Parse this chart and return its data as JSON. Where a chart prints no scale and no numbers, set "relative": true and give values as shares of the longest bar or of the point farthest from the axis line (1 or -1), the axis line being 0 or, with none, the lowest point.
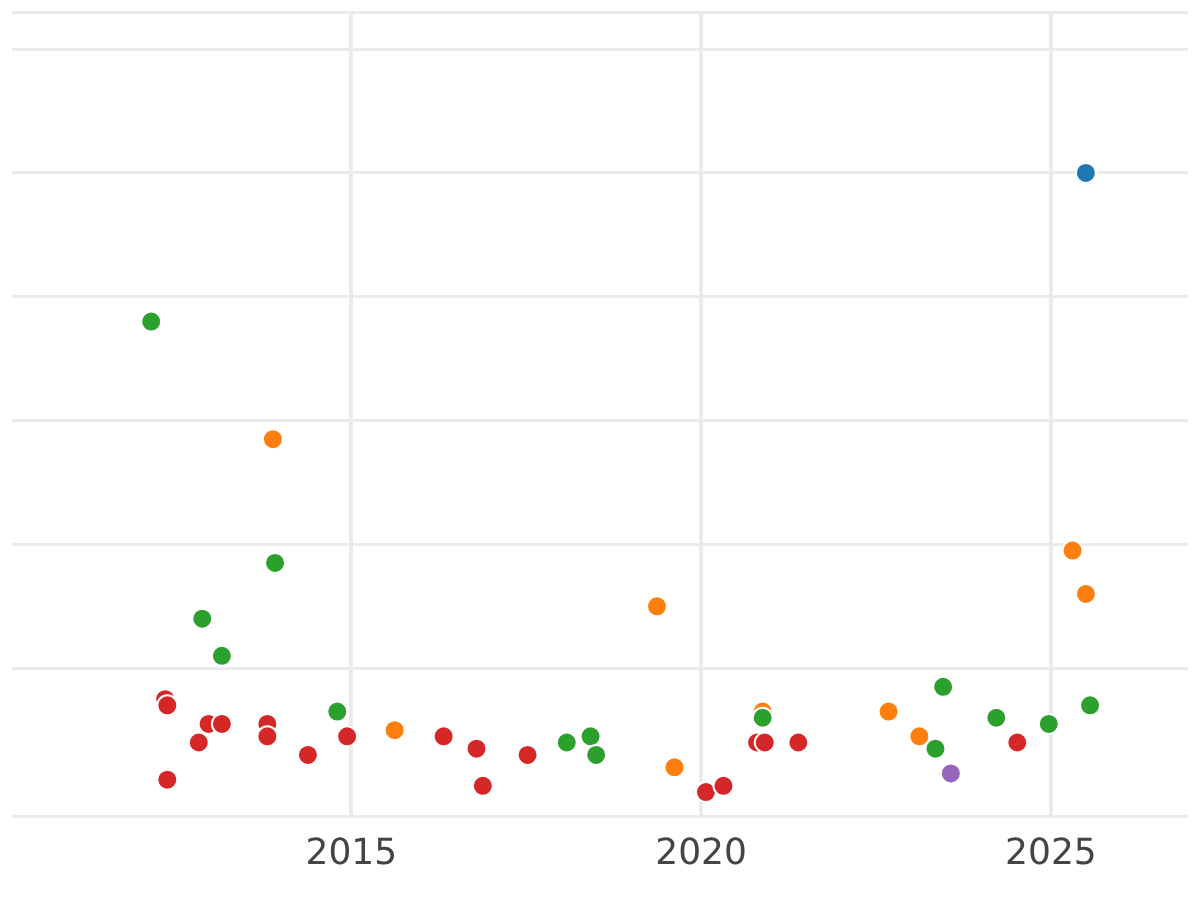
{
  "chart_data": {
    "type": "scatter",
    "relative": true,
    "grid": true,
    "legend": false,
    "marker": "circle",
    "tick_labels": "x",
    "xlim": [
      2010.15,
      2026.96
    ],
    "xticks": [
      2015,
      2020,
      2025
    ],
    "series": [
      {
        "color": "#2ca02c",
        "x": [
          2012.14,
          2013.91,
          2012.87,
          2013.15,
          2014.8,
          2018.08,
          2018.42,
          2018.5,
          2020.88,
          2023.46,
          2023.35,
          2024.22,
          2024.97,
          2025.56
        ],
        "values": [
          0.76,
          0.37,
          0.28,
          0.22,
          0.13,
          0.08,
          0.09,
          0.06,
          0.12,
          0.17,
          0.07,
          0.12,
          0.11,
          0.14
        ]
      },
      {
        "color": "#ff7f0e",
        "x": [
          2013.88,
          2015.62,
          2019.37,
          2019.62,
          2020.88,
          2022.68,
          2023.12,
          2025.31,
          2025.5
        ],
        "values": [
          0.57,
          0.1,
          0.3,
          0.04,
          0.13,
          0.13,
          0.09,
          0.39,
          0.32
        ]
      },
      {
        "color": "#d62728",
        "x": [
          2012.34,
          2012.37,
          2012.37,
          2012.82,
          2012.96,
          2013.15,
          2013.8,
          2013.8,
          2014.38,
          2014.94,
          2016.32,
          2016.79,
          2016.88,
          2017.52,
          2020.07,
          2020.32,
          2020.8,
          2020.91,
          2021.39,
          2024.52
        ],
        "values": [
          0.15,
          0.14,
          0.02,
          0.08,
          0.11,
          0.11,
          0.11,
          0.09,
          0.06,
          0.09,
          0.09,
          0.07,
          0.01,
          0.06,
          0,
          0.01,
          0.08,
          0.08,
          0.08,
          0.08
        ]
      },
      {
        "color": "#1f77b4",
        "x": [
          2025.5
        ],
        "values": [
          1
        ]
      },
      {
        "color": "#9467bd",
        "x": [
          2023.57
        ],
        "values": [
          0.03
        ]
      }
    ]
  }
}
